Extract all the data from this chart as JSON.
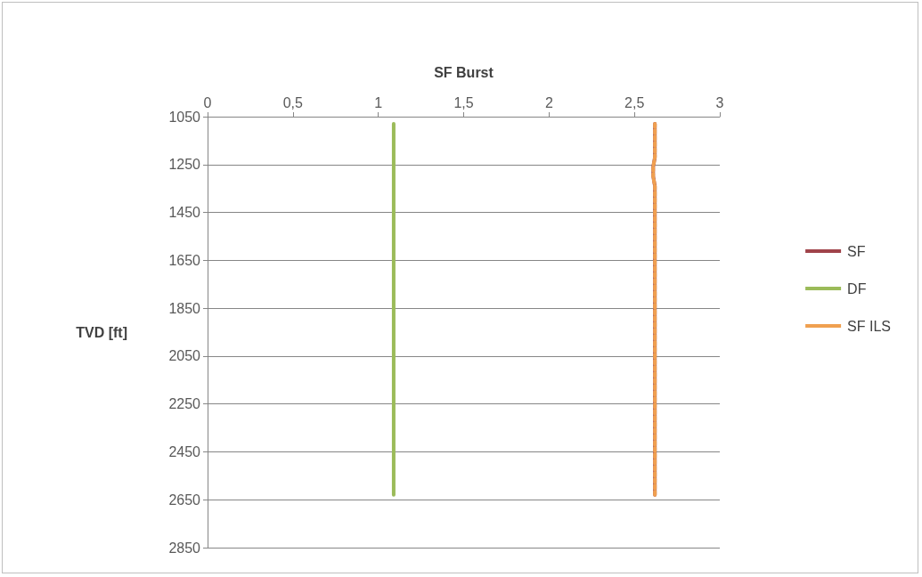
{
  "chart_data": {
    "type": "line",
    "xlabel": "SF Burst",
    "ylabel": "TVD [ft]",
    "xlim": [
      0,
      3
    ],
    "xticks": [
      0,
      {
        "value": 0.5,
        "label": "0,5"
      },
      1,
      {
        "value": 1.5,
        "label": "1,5"
      },
      2,
      {
        "value": 2.5,
        "label": "2,5"
      },
      3
    ],
    "ylim": [
      2850,
      1050
    ],
    "yticks": [
      1050,
      1250,
      1450,
      1650,
      1850,
      2050,
      2250,
      2450,
      2650,
      2850
    ],
    "grid": "y",
    "legend": "right",
    "marker": "none",
    "series": [
      {
        "name": "SF",
        "color": "#a0434a",
        "line_style": "solid",
        "x": [
          2.62,
          2.62,
          2.61,
          2.61,
          2.62,
          2.62
        ],
        "values": [
          1080,
          1220,
          1260,
          1300,
          1340,
          2630
        ]
      },
      {
        "name": "DF",
        "color": "#9bbb59",
        "line_style": "solid",
        "x": [
          1.09,
          1.09
        ],
        "values": [
          1080,
          2630
        ]
      },
      {
        "name": "SF ILS",
        "color": "#f0a050",
        "line_style": "dashed",
        "x": [
          2.62,
          2.62,
          2.61,
          2.61,
          2.62,
          2.62
        ],
        "values": [
          1080,
          1220,
          1260,
          1300,
          1340,
          2630
        ]
      }
    ]
  }
}
